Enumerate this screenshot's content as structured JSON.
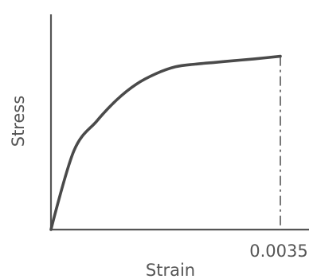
{
  "chart_data": {
    "type": "line",
    "title": "",
    "xlabel": "Strain",
    "ylabel": "Stress",
    "x_tick_labels": [
      "0.0035"
    ],
    "xlim": [
      0,
      0.0035
    ],
    "ylim": [
      0,
      1.02
    ],
    "grid": false,
    "legend": "none",
    "y_tick_labels_shown": false,
    "series": [
      {
        "x": [
          0,
          0.00035,
          0.0007,
          0.001,
          0.0013,
          0.0016,
          0.0019,
          0.0022,
          0.0025,
          0.0028,
          0.0031,
          0.0035
        ],
        "y": [
          0,
          0.45,
          0.62,
          0.74,
          0.83,
          0.89,
          0.93,
          0.945,
          0.955,
          0.965,
          0.975,
          0.99
        ]
      }
    ],
    "annotations": [
      {
        "type": "dash-dot-vertical-line",
        "x": 0.0035,
        "from_y": 0,
        "to_y": 0.99
      }
    ]
  }
}
